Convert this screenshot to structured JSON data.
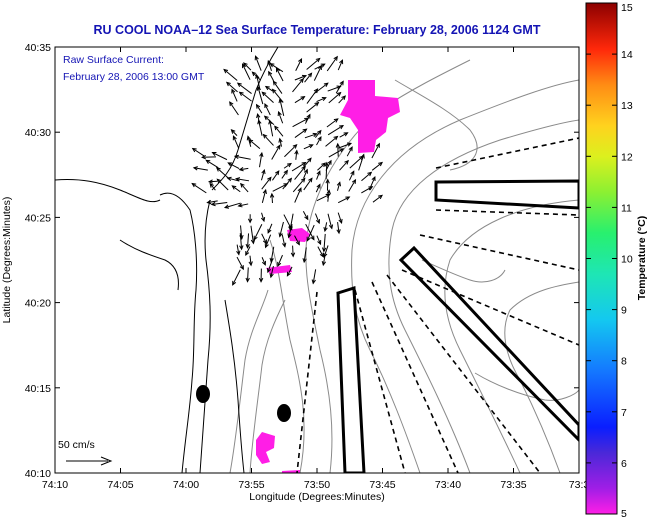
{
  "chart_data": {
    "type": "scatter",
    "title": "RU COOL  NOAA–12  Sea Surface Temperature:  February 28, 2006 1124 GMT",
    "annotation_line1": "Raw Surface Current:",
    "annotation_line2": "February 28, 2006 13:00 GMT",
    "xlabel": "Longitude (Degrees:Minutes)",
    "ylabel": "Latitude (Degrees:Minutes)",
    "x_ticks": [
      "74:10",
      "74:05",
      "74:00",
      "73:55",
      "73:50",
      "73:45",
      "73:40",
      "73:35",
      "73:3"
    ],
    "y_ticks": [
      "40:10",
      "40:15",
      "40:20",
      "40:25",
      "40:30",
      "40:35"
    ],
    "xlim_minutes_west": [
      190,
      150
    ],
    "ylim_minutes_north": [
      10,
      35
    ],
    "scale_label": "50 cm/s",
    "colorbar": {
      "label": "Temperature (°C)",
      "min": 5,
      "max": 15,
      "ticks": [
        "5",
        "6",
        "7",
        "8",
        "9",
        "10",
        "11",
        "12",
        "13",
        "14",
        "15"
      ]
    },
    "sst_patches_color": "#ff1ee6",
    "grid": false
  }
}
